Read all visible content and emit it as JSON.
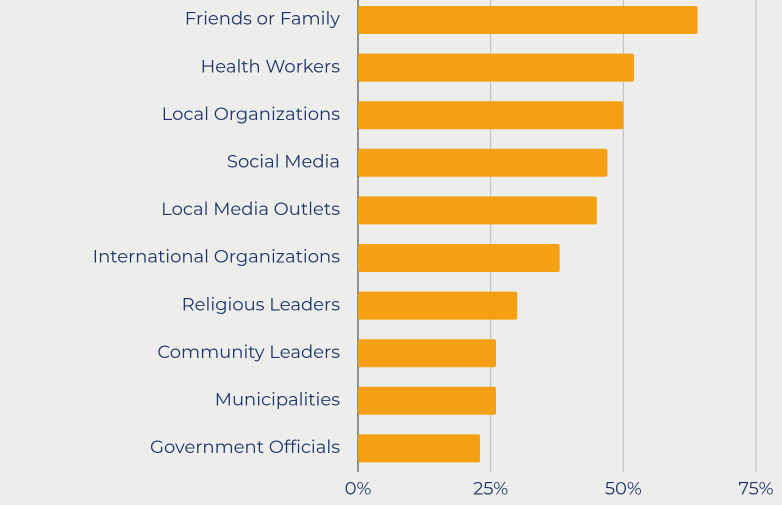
{
  "chart_data": {
    "type": "bar",
    "orientation": "horizontal",
    "categories": [
      "Friends or Family",
      "Health Workers",
      "Local Organizations",
      "Social Media",
      "Local Media Outlets",
      "International Organizations",
      "Religious Leaders",
      "Community Leaders",
      "Municipalities",
      "Government Officials"
    ],
    "values": [
      64,
      52,
      50,
      47,
      45,
      38,
      30,
      26,
      26,
      23
    ],
    "color": "#f59f12",
    "xlim": [
      0,
      75
    ],
    "xticks": [
      {
        "value": 0,
        "label": "0%"
      },
      {
        "value": 25,
        "label": "25%"
      },
      {
        "value": 50,
        "label": "50%"
      },
      {
        "value": 75,
        "label": "75%"
      }
    ],
    "grid": true
  }
}
